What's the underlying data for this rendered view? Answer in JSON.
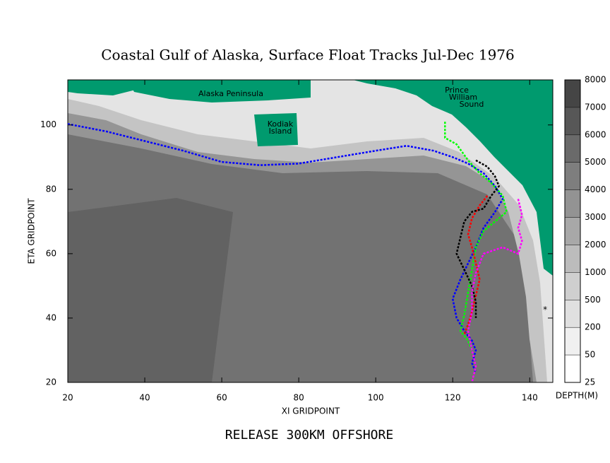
{
  "chart_data": {
    "type": "line",
    "title": "Coastal Gulf of Alaska, Surface Float Tracks Jul-Dec 1976",
    "subtitle": "RELEASE 300KM OFFSHORE",
    "x_label": "XI GRIDPOINT",
    "y_label": "ETA GRIDPOINT",
    "xlim": [
      20,
      146
    ],
    "ylim": [
      20,
      114
    ],
    "xticks": [
      20,
      40,
      60,
      80,
      100,
      120,
      140
    ],
    "yticks": [
      20,
      40,
      60,
      80,
      100
    ],
    "annotations": [
      [
        "Alaska Peninsula"
      ],
      [
        "Kodiak",
        "Island"
      ],
      [
        "Prince",
        "William",
        "Sound"
      ]
    ],
    "colorbar": {
      "label": "DEPTH(M)",
      "levels": [
        25,
        50,
        200,
        500,
        1000,
        2000,
        3000,
        4000,
        5000,
        6000,
        7000,
        8000
      ],
      "colors": [
        "#ffffff",
        "#f0f0f0",
        "#e0e0e0",
        "#cfcfcf",
        "#bcbcbc",
        "#a8a8a8",
        "#939393",
        "#7e7e7e",
        "#6a6a6a",
        "#575757",
        "#454545"
      ]
    },
    "series": [
      {
        "color": "#0000ff",
        "x": [
          20,
          30,
          40,
          50,
          60,
          70,
          80,
          90,
          100,
          108,
          115,
          120,
          124,
          128,
          131,
          133,
          131,
          128,
          126,
          124,
          122,
          120,
          121,
          123,
          125,
          126,
          125,
          126
        ],
        "values": [
          100.3,
          98,
          95,
          92,
          88.5,
          87.5,
          88,
          90,
          92,
          93.5,
          92,
          90,
          88,
          85,
          81,
          77,
          73,
          68,
          62,
          57,
          52,
          46,
          40,
          36,
          33,
          30,
          26,
          23
        ]
      },
      {
        "color": "#00ff00",
        "x": [
          118,
          118,
          121,
          124,
          127,
          130,
          133,
          134,
          131,
          128,
          126,
          125,
          124,
          123,
          122,
          124,
          125
        ],
        "values": [
          101,
          96,
          94,
          89,
          85,
          82,
          78,
          73,
          70,
          67,
          62,
          55,
          48,
          41,
          36,
          33,
          30
        ]
      },
      {
        "color": "#ff0000",
        "x": [
          129,
          127,
          125,
          124,
          125,
          126,
          127,
          126,
          125,
          124,
          123
        ],
        "values": [
          78,
          75,
          71,
          66,
          62,
          57,
          52,
          47,
          42,
          38,
          35
        ]
      },
      {
        "color": "#000000",
        "x": [
          126,
          129,
          131,
          132,
          130,
          128,
          125,
          123,
          122,
          121,
          123,
          125,
          126,
          126
        ],
        "values": [
          89,
          87,
          84,
          81,
          78,
          74,
          73,
          70,
          65,
          60,
          55,
          50,
          45,
          40
        ]
      },
      {
        "color": "#ff00ff",
        "x": [
          137,
          138,
          137,
          138,
          137,
          133,
          128,
          126,
          125,
          125,
          124,
          125,
          126,
          125
        ],
        "values": [
          77,
          72,
          68,
          64,
          60,
          62,
          60,
          54,
          48,
          42,
          36,
          30,
          25,
          20
        ]
      },
      {
        "color": "#000000",
        "x": [
          144
        ],
        "values": [
          43
        ]
      }
    ]
  }
}
